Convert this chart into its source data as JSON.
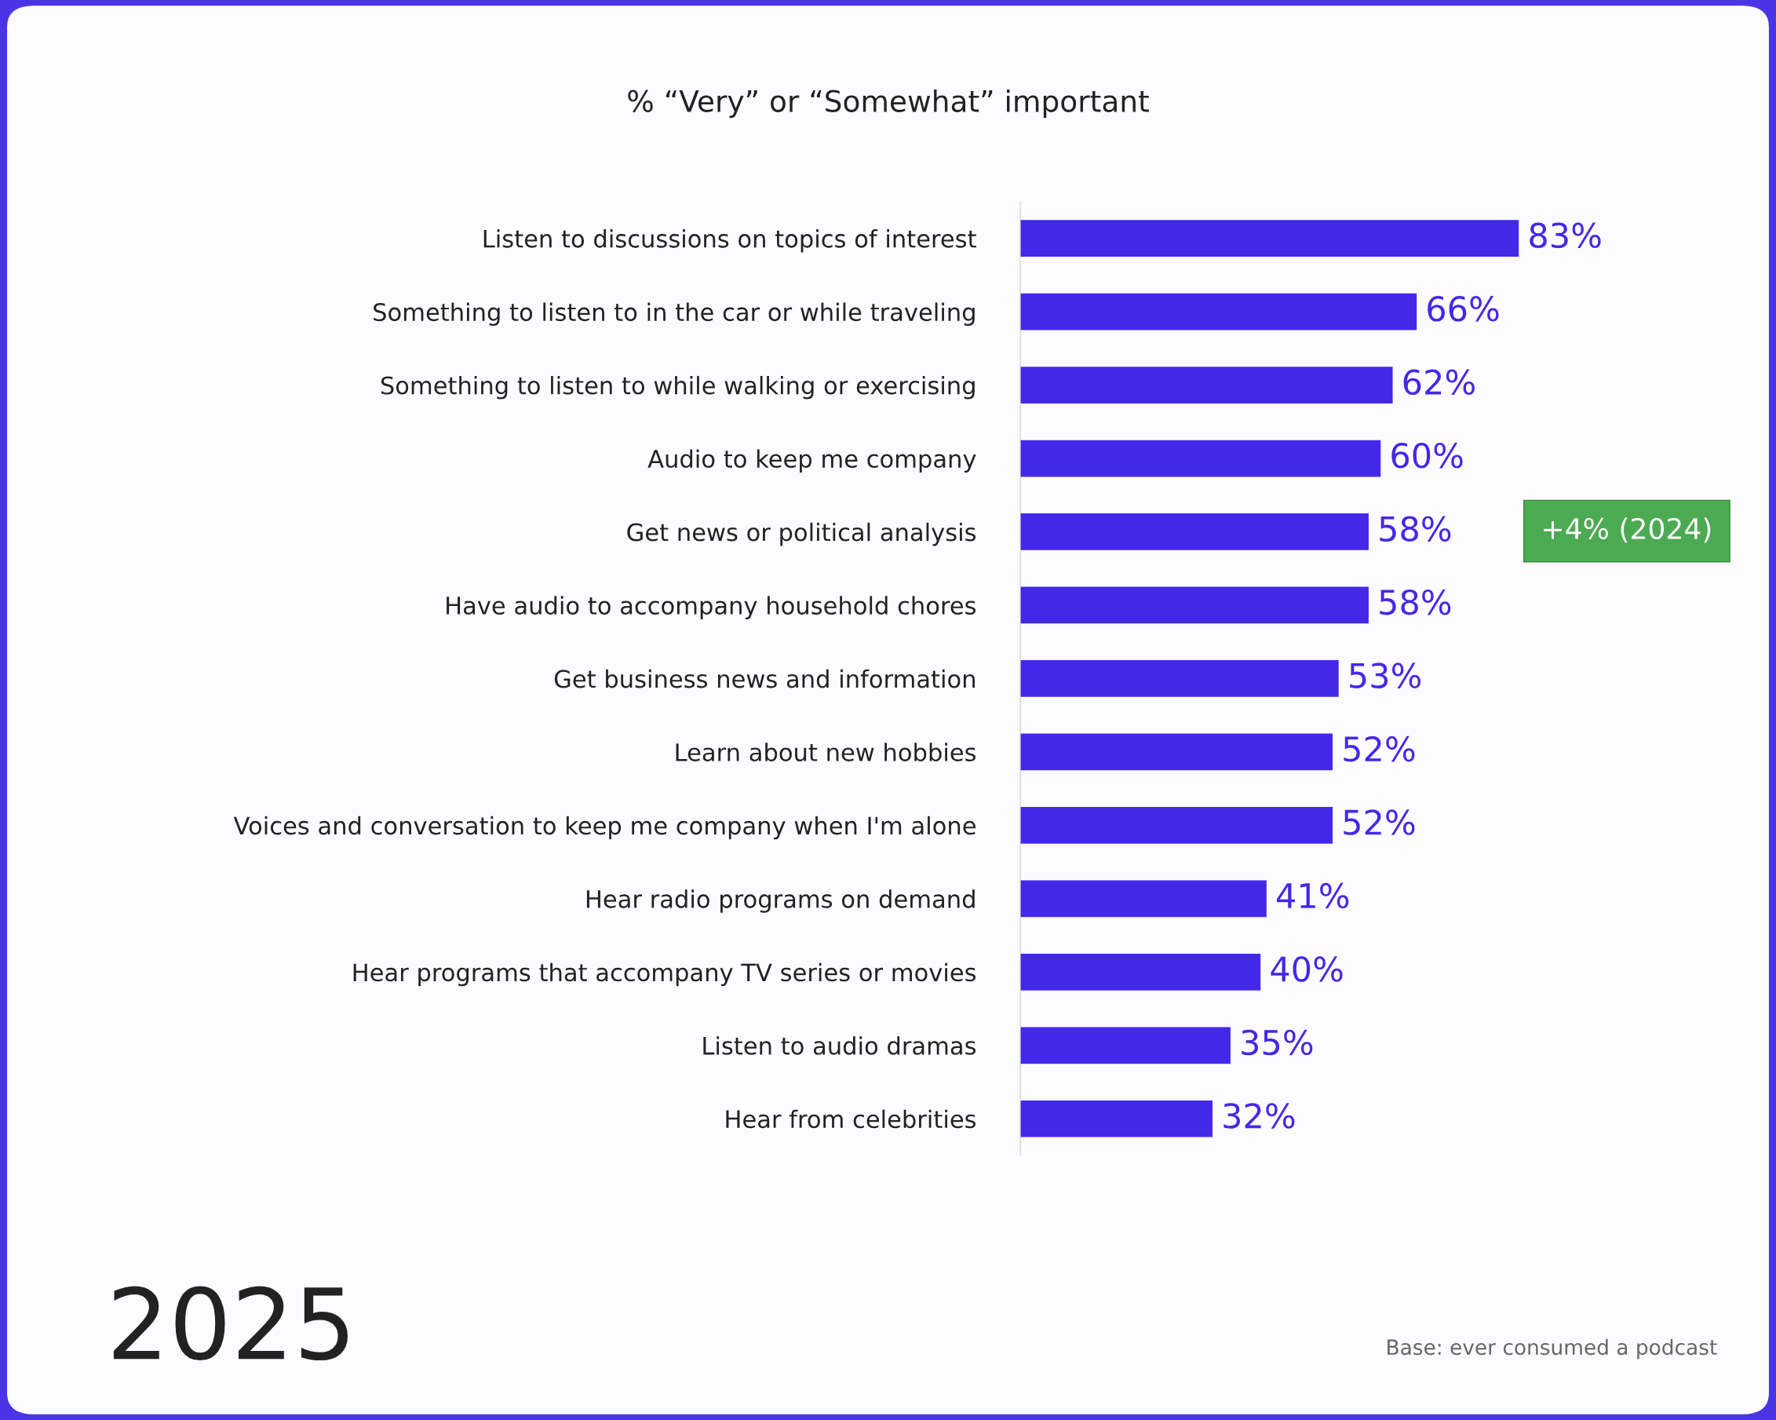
{
  "chart_data": {
    "type": "bar",
    "orientation": "horizontal",
    "title": "% “Very” or “Somewhat” important",
    "categories": [
      "Listen to discussions on topics of interest",
      "Something to listen to in the car or while traveling",
      "Something to listen to while walking or exercising",
      "Audio to keep me company",
      "Get news or political analysis",
      "Have audio to accompany household chores",
      "Get business news and information",
      "Learn about new hobbies",
      "Voices and conversation to keep me company when I'm alone",
      "Hear radio programs on demand",
      "Hear programs that accompany TV series or movies",
      "Listen to audio dramas",
      "Hear from celebrities"
    ],
    "values": [
      83,
      66,
      62,
      60,
      58,
      58,
      53,
      52,
      52,
      41,
      40,
      35,
      32
    ],
    "value_labels": [
      "83%",
      "66%",
      "62%",
      "60%",
      "58%",
      "58%",
      "53%",
      "52%",
      "52%",
      "41%",
      "40%",
      "35%",
      "32%"
    ],
    "color": "#4328e8",
    "tick_labels": "y",
    "grid": false,
    "legend": false,
    "annotations": [
      "+4% (2024)",
      "2025",
      "Base: ever consumed a podcast"
    ]
  }
}
